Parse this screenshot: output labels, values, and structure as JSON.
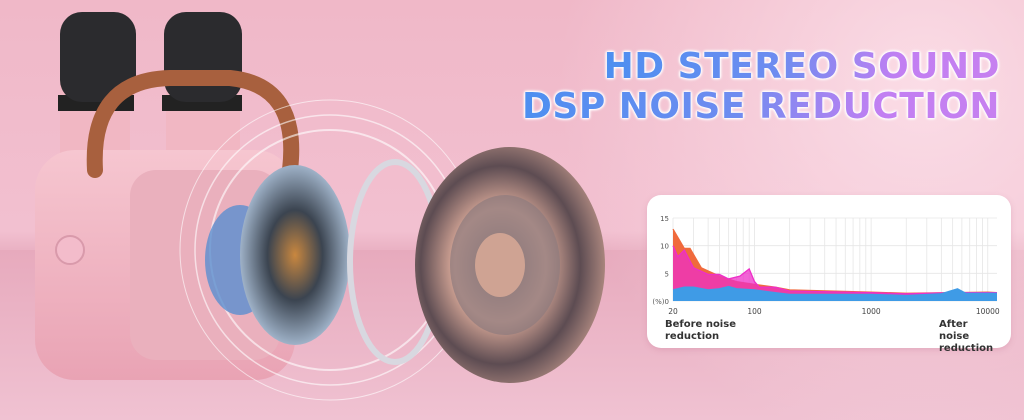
{
  "headline": {
    "line1": "HD STEREO SOUND",
    "line2": "DSP NOISE REDUCTION"
  },
  "colors": {
    "headline_start": "#4d8ff0",
    "headline_end": "#c680f0",
    "background": "#f0b8c8",
    "product": "#f3b9c6"
  },
  "chart_data": {
    "type": "area",
    "x_scale": "log",
    "xlim": [
      20,
      12000
    ],
    "ylim": [
      0,
      15
    ],
    "x_ticks": [
      "20",
      "100",
      "1000",
      "10000"
    ],
    "y_ticks": [
      "(%)0",
      "5",
      "10",
      "15"
    ],
    "grid": true,
    "series": [
      {
        "color": "#f06a3c",
        "x": [
          20,
          25,
          28,
          35,
          50,
          70,
          100,
          150,
          200,
          1000,
          2000,
          5000,
          10000,
          12000
        ],
        "y": [
          13,
          9.5,
          9.5,
          6,
          4.5,
          3.5,
          3,
          2.5,
          2,
          1.6,
          1.4,
          1.5,
          1.6,
          1.5
        ]
      },
      {
        "color": "#ee2fc8",
        "x": [
          20,
          22,
          25,
          30,
          40,
          50,
          60,
          75,
          90,
          100,
          110,
          150,
          200,
          1000,
          2000,
          5000,
          10000,
          12000
        ],
        "y": [
          10,
          8,
          9.2,
          6,
          4.8,
          4.8,
          4,
          4.5,
          5.8,
          3.5,
          2.5,
          2.5,
          1.8,
          1.5,
          1.3,
          1.5,
          1.5,
          1.5
        ]
      },
      {
        "color": "#3f9be6",
        "x": [
          20,
          25,
          30,
          40,
          50,
          60,
          70,
          100,
          150,
          200,
          1000,
          2000,
          4000,
          5500,
          6500,
          12000
        ],
        "y": [
          2,
          2.5,
          2.5,
          2,
          2.2,
          2.6,
          2.2,
          2,
          1.5,
          1.2,
          1.2,
          1,
          1.3,
          2.2,
          1.4,
          1.4
        ]
      }
    ]
  },
  "captions": {
    "left": "Before noise reduction",
    "right": "After noise reduction"
  }
}
